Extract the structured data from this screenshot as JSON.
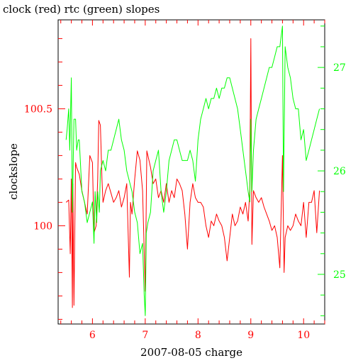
{
  "chart_data": {
    "type": "line",
    "title": "clock (red) rtc (green) slopes",
    "xlabel": "2007-08-05 charge",
    "ylabel": "clockslope",
    "xlim": [
      5.35,
      10.4
    ],
    "ylim_left": [
      99.58,
      100.88
    ],
    "ylim_right": [
      24.52,
      27.46
    ],
    "x_ticks": [
      6,
      7,
      8,
      9,
      10
    ],
    "x_tick_labels": [
      "6",
      "7",
      "8",
      "9",
      "10"
    ],
    "y_left_ticks": [
      100,
      100.5
    ],
    "y_left_tick_labels": [
      "100",
      "100.5"
    ],
    "y_right_ticks": [
      25,
      26,
      27
    ],
    "y_right_tick_labels": [
      "25",
      "26",
      "27"
    ],
    "grid": false,
    "colors": {
      "clock": "#ff0000",
      "rtc": "#00ff00",
      "axes": "#000000"
    },
    "series": [
      {
        "axis": "left",
        "color": "#ff0000",
        "x": [
          5.5,
          5.55,
          5.58,
          5.6,
          5.62,
          5.63,
          5.65,
          5.68,
          5.7,
          5.75,
          5.8,
          5.85,
          5.9,
          5.95,
          6.0,
          6.03,
          6.07,
          6.1,
          6.12,
          6.15,
          6.18,
          6.2,
          6.25,
          6.3,
          6.35,
          6.4,
          6.45,
          6.5,
          6.55,
          6.6,
          6.65,
          6.7,
          6.72,
          6.75,
          6.8,
          6.85,
          6.9,
          6.95,
          7.0,
          7.03,
          7.05,
          7.1,
          7.15,
          7.2,
          7.25,
          7.3,
          7.35,
          7.4,
          7.45,
          7.5,
          7.55,
          7.6,
          7.65,
          7.7,
          7.75,
          7.8,
          7.85,
          7.9,
          7.95,
          8.0,
          8.05,
          8.1,
          8.15,
          8.2,
          8.25,
          8.3,
          8.35,
          8.4,
          8.45,
          8.5,
          8.55,
          8.6,
          8.65,
          8.7,
          8.75,
          8.8,
          8.85,
          8.9,
          8.95,
          8.98,
          9.0,
          9.02,
          9.05,
          9.1,
          9.15,
          9.2,
          9.25,
          9.3,
          9.35,
          9.4,
          9.45,
          9.5,
          9.55,
          9.6,
          9.63,
          9.65,
          9.7,
          9.75,
          9.8,
          9.85,
          9.9,
          9.95,
          10.0,
          10.05,
          10.1,
          10.15,
          10.2,
          10.25,
          10.3
        ],
        "values": [
          100.1,
          100.11,
          99.88,
          100.2,
          99.65,
          100.18,
          99.66,
          100.27,
          100.25,
          100.22,
          100.15,
          100.1,
          100.05,
          100.3,
          100.27,
          99.97,
          100.0,
          100.2,
          100.45,
          100.43,
          100.2,
          100.1,
          100.15,
          100.18,
          100.14,
          100.1,
          100.12,
          100.15,
          100.08,
          100.12,
          100.18,
          99.78,
          100.1,
          100.05,
          100.2,
          100.32,
          100.28,
          100.15,
          99.72,
          100.32,
          100.3,
          100.25,
          100.18,
          100.2,
          100.12,
          100.15,
          100.1,
          100.18,
          100.1,
          100.15,
          100.12,
          100.2,
          100.18,
          100.15,
          100.05,
          99.9,
          100.1,
          100.18,
          100.12,
          100.1,
          100.1,
          100.08,
          100.0,
          99.95,
          100.02,
          100.0,
          100.05,
          100.02,
          100.0,
          99.95,
          99.85,
          99.95,
          100.05,
          100.0,
          100.02,
          100.08,
          100.05,
          100.1,
          100.02,
          100.15,
          100.8,
          99.92,
          100.15,
          100.12,
          100.1,
          100.12,
          100.08,
          100.05,
          100.02,
          99.98,
          100.0,
          99.95,
          99.82,
          100.3,
          99.8,
          99.95,
          100.0,
          99.98,
          100.0,
          100.05,
          100.02,
          100.0,
          100.1,
          99.95,
          100.1,
          100.1,
          100.15,
          99.97,
          100.15
        ]
      },
      {
        "axis": "right",
        "color": "#00ff00",
        "x": [
          5.5,
          5.52,
          5.55,
          5.57,
          5.6,
          5.62,
          5.65,
          5.68,
          5.7,
          5.73,
          5.75,
          5.8,
          5.85,
          5.9,
          5.95,
          6.0,
          6.03,
          6.05,
          6.08,
          6.1,
          6.13,
          6.15,
          6.2,
          6.25,
          6.3,
          6.35,
          6.4,
          6.45,
          6.5,
          6.55,
          6.6,
          6.65,
          6.7,
          6.75,
          6.8,
          6.85,
          6.9,
          6.95,
          6.98,
          7.0,
          7.02,
          7.05,
          7.1,
          7.15,
          7.2,
          7.25,
          7.3,
          7.35,
          7.4,
          7.45,
          7.5,
          7.55,
          7.6,
          7.65,
          7.7,
          7.75,
          7.8,
          7.85,
          7.9,
          7.95,
          8.0,
          8.05,
          8.1,
          8.15,
          8.2,
          8.25,
          8.3,
          8.35,
          8.4,
          8.45,
          8.5,
          8.55,
          8.6,
          8.65,
          8.7,
          8.75,
          8.8,
          8.85,
          8.9,
          8.95,
          8.98,
          9.0,
          9.02,
          9.05,
          9.1,
          9.15,
          9.2,
          9.25,
          9.3,
          9.35,
          9.4,
          9.45,
          9.5,
          9.55,
          9.6,
          9.62,
          9.65,
          9.7,
          9.75,
          9.8,
          9.85,
          9.9,
          9.95,
          10.0,
          10.05,
          10.1,
          10.15,
          10.2,
          10.25,
          10.3
        ],
        "values": [
          26.3,
          26.4,
          26.6,
          26.2,
          26.9,
          25.6,
          26.5,
          26.5,
          26.2,
          26.3,
          26.3,
          25.8,
          25.7,
          25.5,
          25.6,
          25.7,
          25.3,
          25.8,
          25.5,
          25.8,
          25.6,
          26.0,
          26.1,
          26.0,
          26.2,
          26.2,
          26.3,
          26.4,
          26.5,
          26.3,
          26.2,
          26.0,
          25.9,
          25.8,
          25.6,
          25.5,
          25.2,
          25.3,
          24.8,
          24.6,
          25.4,
          25.5,
          25.6,
          26.0,
          26.1,
          26.2,
          25.8,
          25.6,
          25.8,
          26.1,
          26.2,
          26.3,
          26.3,
          26.2,
          26.1,
          26.1,
          26.1,
          26.2,
          26.1,
          25.9,
          26.3,
          26.5,
          26.6,
          26.7,
          26.6,
          26.7,
          26.7,
          26.8,
          26.7,
          26.8,
          26.8,
          26.9,
          26.9,
          26.8,
          26.7,
          26.6,
          26.4,
          26.2,
          26.0,
          25.8,
          25.7,
          26.5,
          25.8,
          26.2,
          26.5,
          26.6,
          26.7,
          26.8,
          26.9,
          27.0,
          27.0,
          27.1,
          27.2,
          27.2,
          27.4,
          25.8,
          27.2,
          27.0,
          26.9,
          26.7,
          26.6,
          26.6,
          26.3,
          26.4,
          26.1,
          26.2,
          26.3,
          26.4,
          26.5,
          26.6
        ]
      }
    ]
  }
}
